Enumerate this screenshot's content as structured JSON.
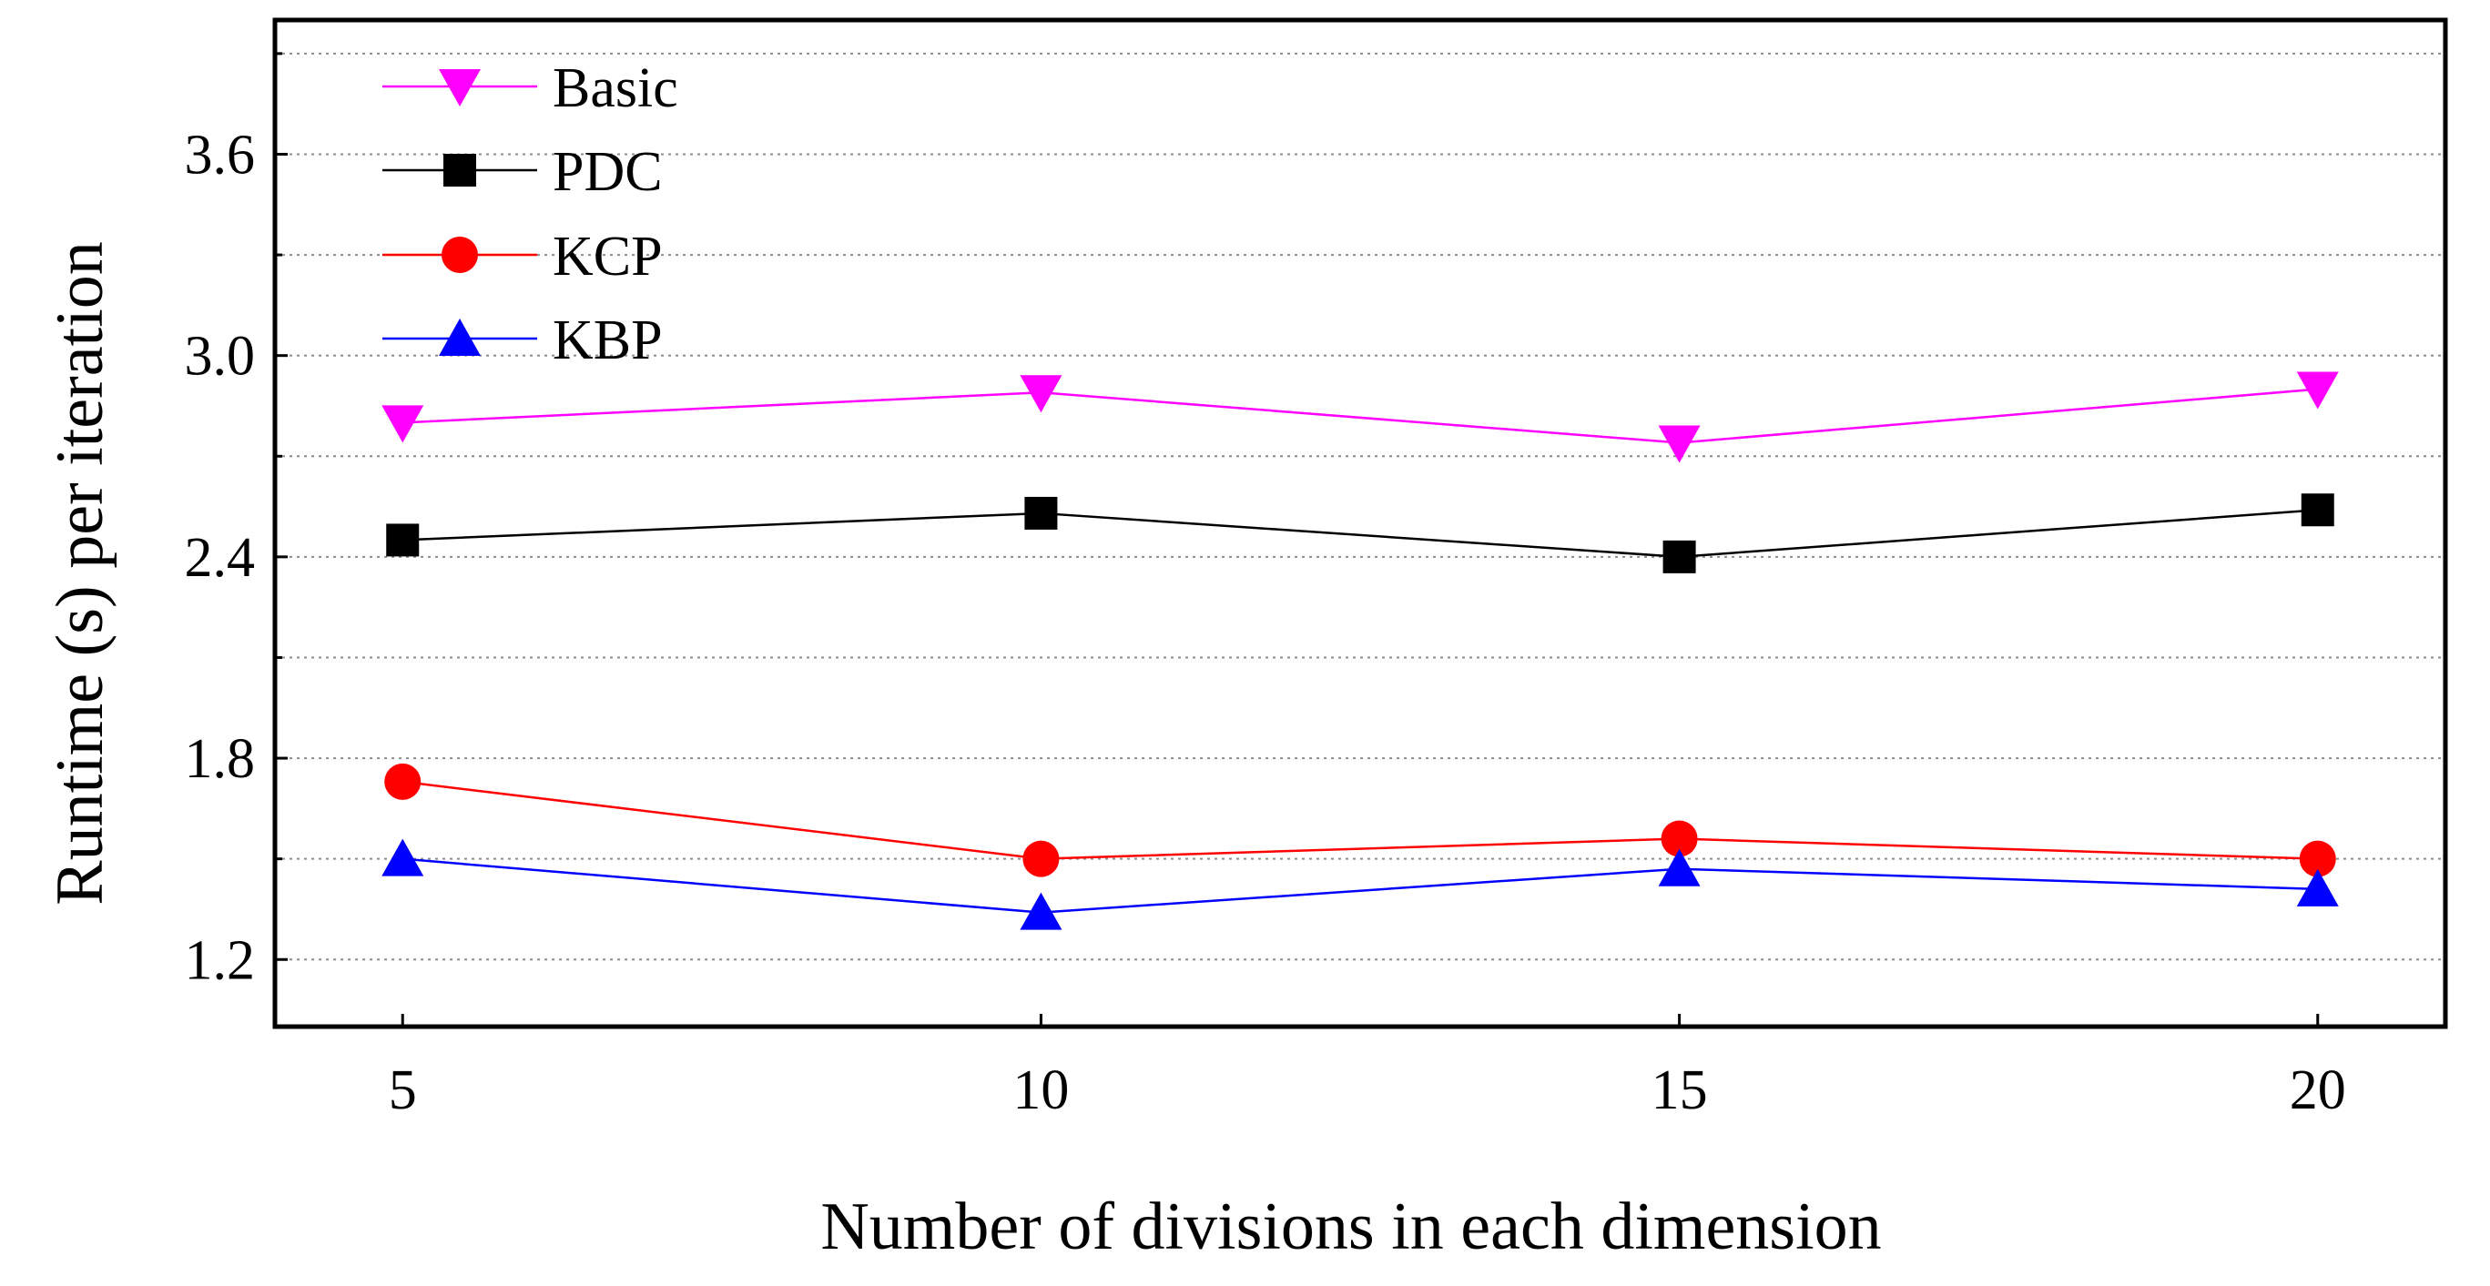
{
  "chart_data": {
    "type": "line",
    "title": "",
    "xlabel": "Number of divisions in each dimension",
    "ylabel": "Runtime (s) per iteration",
    "x": [
      5,
      10,
      15,
      20
    ],
    "xticks": [
      "5",
      "10",
      "15",
      "20"
    ],
    "xlim": [
      4,
      21
    ],
    "ylim": [
      1.0,
      4.0
    ],
    "yticks_major": [
      1.2,
      1.8,
      2.4,
      3.0,
      3.6
    ],
    "ytick_labels": [
      "1.2",
      "1.8",
      "2.4",
      "3.0",
      "3.6"
    ],
    "yticks_minor": [
      1.5,
      2.1,
      2.7,
      3.3,
      3.9
    ],
    "grid": true,
    "legend_position": "top-left",
    "series": [
      {
        "name": "Basic",
        "values": [
          2.8,
          2.89,
          2.74,
          2.9
        ],
        "color": "#ff00ff",
        "marker": "triangle-down"
      },
      {
        "name": "PDC",
        "values": [
          2.45,
          2.53,
          2.4,
          2.54
        ],
        "color": "#000000",
        "marker": "square"
      },
      {
        "name": "KCP",
        "values": [
          1.73,
          1.5,
          1.56,
          1.5
        ],
        "color": "#ff0000",
        "marker": "circle"
      },
      {
        "name": "KBP",
        "values": [
          1.5,
          1.34,
          1.47,
          1.41
        ],
        "color": "#0000ff",
        "marker": "triangle-up"
      }
    ]
  }
}
